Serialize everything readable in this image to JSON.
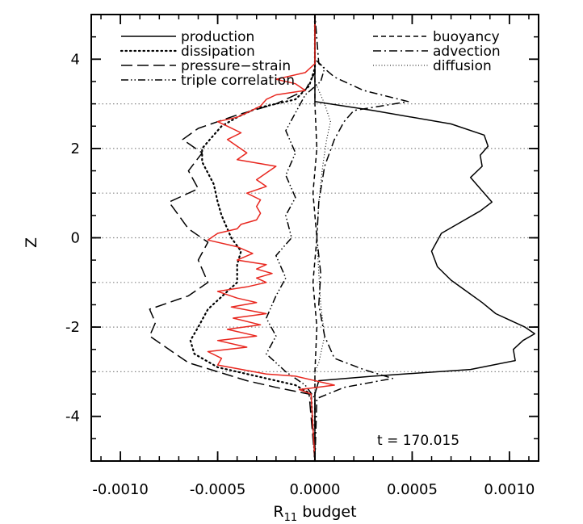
{
  "chart_data": {
    "type": "line",
    "xlabel": "R",
    "xlabel_sub": "11",
    "xlabel_rest": " budget",
    "ylabel": "Z",
    "xlim": [
      -0.00115,
      0.00115
    ],
    "ylim": [
      -5,
      5
    ],
    "x_ticks": [
      -0.001,
      -0.0005,
      0.0,
      0.0005,
      0.001
    ],
    "x_tick_labels": [
      "-0.0010",
      "-0.0005",
      "0.0000",
      "0.0005",
      "0.0010"
    ],
    "y_ticks": [
      -4,
      -2,
      0,
      2,
      4
    ],
    "y_tick_labels": [
      "-4",
      "-2",
      "0",
      "2",
      "4"
    ],
    "reference_lines_z": [
      -3,
      -2,
      -1,
      0,
      1,
      2,
      3
    ],
    "annotation": "t = 170.015",
    "legend": [
      {
        "name": "production",
        "style": "solid"
      },
      {
        "name": "dissipation",
        "style": "dotted"
      },
      {
        "name": "pressure−strain",
        "style": "longdash"
      },
      {
        "name": "triple correlation",
        "style": "dashdotdot"
      },
      {
        "name": "buoyancy",
        "style": "dashed"
      },
      {
        "name": "advection",
        "style": "dashdot"
      },
      {
        "name": "diffusion",
        "style": "fine-dotted"
      }
    ],
    "series": [
      {
        "name": "production",
        "style": "solid",
        "color": "#000000",
        "points": [
          [
            0,
            -5
          ],
          [
            0,
            -3.5
          ],
          [
            2e-05,
            -3.2
          ],
          [
            0.0003,
            -3.1
          ],
          [
            0.0008,
            -2.95
          ],
          [
            0.00103,
            -2.75
          ],
          [
            0.00102,
            -2.5
          ],
          [
            0.00107,
            -2.3
          ],
          [
            0.00113,
            -2.15
          ],
          [
            0.00108,
            -2.0
          ],
          [
            0.00093,
            -1.7
          ],
          [
            0.00086,
            -1.45
          ],
          [
            0.00078,
            -1.2
          ],
          [
            0.0007,
            -0.95
          ],
          [
            0.00063,
            -0.65
          ],
          [
            0.0006,
            -0.3
          ],
          [
            0.00065,
            0.1
          ],
          [
            0.00075,
            0.35
          ],
          [
            0.00085,
            0.6
          ],
          [
            0.00091,
            0.8
          ],
          [
            0.00086,
            1.05
          ],
          [
            0.0008,
            1.35
          ],
          [
            0.00086,
            1.6
          ],
          [
            0.00085,
            1.85
          ],
          [
            0.00089,
            2.05
          ],
          [
            0.00087,
            2.3
          ],
          [
            0.0007,
            2.55
          ],
          [
            0.0003,
            2.85
          ],
          [
            0.0,
            3.05
          ],
          [
            0,
            5
          ]
        ]
      },
      {
        "name": "dissipation",
        "style": "dotted",
        "color": "#000000",
        "points": [
          [
            0,
            -5
          ],
          [
            -2e-05,
            -3.5
          ],
          [
            -0.0001,
            -3.3
          ],
          [
            -0.0003,
            -3.1
          ],
          [
            -0.0005,
            -2.9
          ],
          [
            -0.00062,
            -2.6
          ],
          [
            -0.00064,
            -2.3
          ],
          [
            -0.0006,
            -2.0
          ],
          [
            -0.00055,
            -1.6
          ],
          [
            -0.0004,
            -1.0
          ],
          [
            -0.0004,
            -0.6
          ],
          [
            -0.00038,
            -0.3
          ],
          [
            -0.00043,
            0.0
          ],
          [
            -0.00048,
            0.5
          ],
          [
            -0.0005,
            0.8
          ],
          [
            -0.00052,
            1.2
          ],
          [
            -0.00058,
            1.7
          ],
          [
            -0.00058,
            2.0
          ],
          [
            -0.00052,
            2.3
          ],
          [
            -0.00048,
            2.5
          ],
          [
            -0.0004,
            2.7
          ],
          [
            -0.0003,
            2.9
          ],
          [
            -0.0001,
            3.1
          ],
          [
            -3e-05,
            3.4
          ],
          [
            0,
            3.8
          ],
          [
            0,
            5
          ]
        ]
      },
      {
        "name": "pressure−strain",
        "style": "longdash",
        "color": "#000000",
        "points": [
          [
            0,
            -5
          ],
          [
            -3e-05,
            -3.5
          ],
          [
            -0.0002,
            -3.35
          ],
          [
            -0.00035,
            -3.2
          ],
          [
            -0.0005,
            -3.0
          ],
          [
            -0.00065,
            -2.8
          ],
          [
            -0.00075,
            -2.5
          ],
          [
            -0.00085,
            -2.2
          ],
          [
            -0.00082,
            -1.9
          ],
          [
            -0.00085,
            -1.6
          ],
          [
            -0.00065,
            -1.3
          ],
          [
            -0.00055,
            -1.0
          ],
          [
            -0.0006,
            -0.5
          ],
          [
            -0.00055,
            -0.1
          ],
          [
            -0.00065,
            0.2
          ],
          [
            -0.0007,
            0.5
          ],
          [
            -0.00075,
            0.8
          ],
          [
            -0.0006,
            1.1
          ],
          [
            -0.00065,
            1.5
          ],
          [
            -0.00058,
            1.9
          ],
          [
            -0.00068,
            2.2
          ],
          [
            -0.0006,
            2.45
          ],
          [
            -0.0004,
            2.75
          ],
          [
            -0.0002,
            3.0
          ],
          [
            -5e-05,
            3.3
          ],
          [
            0,
            3.7
          ],
          [
            0,
            5
          ]
        ]
      },
      {
        "name": "triple correlation",
        "style": "dashdotdot",
        "color": "#000000",
        "points": [
          [
            0,
            -5
          ],
          [
            0,
            -3.6
          ],
          [
            -5e-05,
            -3.3
          ],
          [
            -0.00015,
            -3.0
          ],
          [
            -0.00025,
            -2.6
          ],
          [
            -0.0002,
            -2.2
          ],
          [
            -0.00025,
            -1.8
          ],
          [
            -0.0002,
            -1.3
          ],
          [
            -0.00015,
            -0.9
          ],
          [
            -0.0002,
            -0.4
          ],
          [
            -0.00012,
            0.0
          ],
          [
            -0.00015,
            0.5
          ],
          [
            -0.0001,
            0.9
          ],
          [
            -0.00015,
            1.4
          ],
          [
            -0.0001,
            1.9
          ],
          [
            -0.00015,
            2.4
          ],
          [
            -0.0001,
            2.8
          ],
          [
            -5e-05,
            3.2
          ],
          [
            3e-05,
            3.5
          ],
          [
            5e-05,
            3.8
          ],
          [
            0,
            4.0
          ],
          [
            0,
            5
          ]
        ]
      },
      {
        "name": "buoyancy",
        "style": "dashed",
        "color": "#000000",
        "points": [
          [
            0,
            -5
          ],
          [
            0,
            -3
          ],
          [
            1e-05,
            -2
          ],
          [
            -1e-05,
            -1
          ],
          [
            1e-05,
            0
          ],
          [
            -1e-05,
            1
          ],
          [
            1e-05,
            2
          ],
          [
            0,
            3
          ],
          [
            0,
            5
          ]
        ]
      },
      {
        "name": "advection",
        "style": "dashdot",
        "color": "#000000",
        "points": [
          [
            0,
            -5
          ],
          [
            1e-05,
            -3.6
          ],
          [
            0.00015,
            -3.35
          ],
          [
            0.0004,
            -3.15
          ],
          [
            0.00025,
            -2.95
          ],
          [
            0.0001,
            -2.7
          ],
          [
            5e-05,
            -2.2
          ],
          [
            2e-05,
            -1.5
          ],
          [
            3e-05,
            -0.8
          ],
          [
            1e-05,
            0.0
          ],
          [
            2e-05,
            0.8
          ],
          [
            5e-05,
            1.6
          ],
          [
            0.0001,
            2.2
          ],
          [
            0.00015,
            2.6
          ],
          [
            0.0002,
            2.85
          ],
          [
            0.00048,
            3.05
          ],
          [
            0.00025,
            3.3
          ],
          [
            0.0001,
            3.6
          ],
          [
            2e-05,
            3.9
          ],
          [
            0,
            5
          ]
        ]
      },
      {
        "name": "diffusion",
        "style": "fine-dotted",
        "color": "#000000",
        "points": [
          [
            0,
            -5
          ],
          [
            0,
            -3
          ],
          [
            2e-05,
            -2.8
          ],
          [
            5e-05,
            -2.2
          ],
          [
            3e-05,
            -1.5
          ],
          [
            2e-05,
            -0.8
          ],
          [
            1e-05,
            0.0
          ],
          [
            2e-05,
            0.8
          ],
          [
            4e-05,
            1.6
          ],
          [
            6e-05,
            2.2
          ],
          [
            8e-05,
            2.6
          ],
          [
            5e-05,
            3.0
          ],
          [
            0,
            3.5
          ],
          [
            0,
            5
          ]
        ]
      },
      {
        "name": "",
        "style": "solid",
        "color": "#e8271f",
        "points": [
          [
            0,
            -5
          ],
          [
            -2e-05,
            -3.5
          ],
          [
            -8e-05,
            -3.4
          ],
          [
            0.0001,
            -3.3
          ],
          [
            -0.0001,
            -3.1
          ],
          [
            -0.00025,
            -3.05
          ],
          [
            -0.0005,
            -2.85
          ],
          [
            -0.00048,
            -2.7
          ],
          [
            -0.00055,
            -2.55
          ],
          [
            -0.00035,
            -2.45
          ],
          [
            -0.0005,
            -2.3
          ],
          [
            -0.0003,
            -2.2
          ],
          [
            -0.00045,
            -2.05
          ],
          [
            -0.00028,
            -1.95
          ],
          [
            -0.00042,
            -1.8
          ],
          [
            -0.00025,
            -1.7
          ],
          [
            -0.00043,
            -1.55
          ],
          [
            -0.0003,
            -1.45
          ],
          [
            -0.0004,
            -1.35
          ],
          [
            -0.0005,
            -1.2
          ],
          [
            -0.00035,
            -1.1
          ],
          [
            -0.00025,
            -1.0
          ],
          [
            -0.0003,
            -0.9
          ],
          [
            -0.00022,
            -0.8
          ],
          [
            -0.0003,
            -0.7
          ],
          [
            -0.00025,
            -0.6
          ],
          [
            -0.0004,
            -0.5
          ],
          [
            -0.00032,
            -0.35
          ],
          [
            -0.0004,
            -0.2
          ],
          [
            -0.00055,
            -0.05
          ],
          [
            -0.0005,
            0.1
          ],
          [
            -0.0004,
            0.2
          ],
          [
            -0.00038,
            0.3
          ],
          [
            -0.0003,
            0.4
          ],
          [
            -0.00028,
            0.55
          ],
          [
            -0.0003,
            0.7
          ],
          [
            -0.00028,
            0.85
          ],
          [
            -0.00035,
            1.0
          ],
          [
            -0.00025,
            1.15
          ],
          [
            -0.0003,
            1.3
          ],
          [
            -0.00025,
            1.45
          ],
          [
            -0.0002,
            1.6
          ],
          [
            -0.0004,
            1.75
          ],
          [
            -0.00035,
            1.9
          ],
          [
            -0.0004,
            2.05
          ],
          [
            -0.00045,
            2.2
          ],
          [
            -0.00038,
            2.35
          ],
          [
            -0.00045,
            2.5
          ],
          [
            -0.0005,
            2.6
          ],
          [
            -0.0004,
            2.7
          ],
          [
            -0.00035,
            2.8
          ],
          [
            -0.00028,
            2.95
          ],
          [
            -0.00025,
            3.1
          ],
          [
            -0.0002,
            3.2
          ],
          [
            -5e-05,
            3.3
          ],
          [
            -0.0001,
            3.45
          ],
          [
            -0.0002,
            3.55
          ],
          [
            -5e-05,
            3.7
          ],
          [
            0,
            3.9
          ],
          [
            0,
            5
          ]
        ]
      }
    ]
  }
}
